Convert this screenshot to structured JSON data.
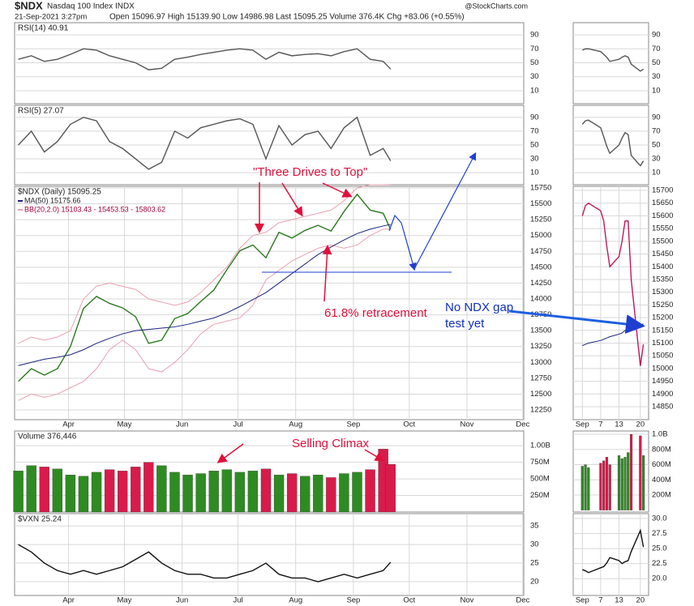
{
  "header": {
    "symbol": "$NDX",
    "name": "Nasdaq 100 Index INDX",
    "date": "21-Sep-2021 3:27pm",
    "quote": "Open 15096.97  High 15139.90  Low 14986.98  Last 15095.25  Volume 376.4K  Chg +83.06 (+0.55%)",
    "credit": "@StockCharts.com"
  },
  "chart_data": [
    {
      "type": "line",
      "legend": "RSI(14) 40.91",
      "xlim": [
        62,
        335.5
      ],
      "ylim": [
        -8.6,
        107.4
      ],
      "yticks": [
        90,
        70,
        50,
        30,
        10
      ],
      "x": [
        64,
        71,
        78,
        85,
        92,
        99,
        106,
        113,
        120,
        127,
        134,
        141,
        148,
        155,
        162,
        169,
        176,
        183,
        190,
        197,
        204,
        211,
        218,
        225,
        232,
        239,
        246,
        253,
        260,
        264
      ],
      "series": [
        {
          "color": "#555555",
          "values": [
            55,
            60,
            52,
            55,
            62,
            70,
            68,
            60,
            55,
            50,
            40,
            42,
            55,
            58,
            62,
            65,
            68,
            70,
            68,
            55,
            65,
            60,
            62,
            63,
            60,
            66,
            70,
            55,
            52,
            40.91
          ]
        }
      ]
    },
    {
      "type": "line",
      "legend": "RSI(5) 27.07",
      "xlim": [
        62,
        335.5
      ],
      "ylim": [
        -7.4,
        107.4
      ],
      "yticks": [
        90,
        70,
        50,
        30,
        10
      ],
      "x": [
        64,
        71,
        78,
        85,
        92,
        99,
        106,
        113,
        120,
        127,
        134,
        141,
        148,
        155,
        162,
        169,
        176,
        183,
        190,
        197,
        204,
        211,
        218,
        225,
        232,
        239,
        246,
        253,
        260,
        264
      ],
      "series": [
        {
          "color": "#555555",
          "values": [
            50,
            70,
            40,
            55,
            80,
            90,
            85,
            55,
            45,
            30,
            15,
            25,
            70,
            60,
            75,
            80,
            85,
            88,
            80,
            30,
            78,
            50,
            65,
            70,
            45,
            75,
            90,
            35,
            45,
            27.07
          ]
        }
      ]
    },
    {
      "type": "line",
      "legend": "$NDX (Daily) 15095.25",
      "xlim": [
        62,
        335.5
      ],
      "ylim": [
        12097,
        15775
      ],
      "yticks": [
        15750,
        15500,
        15250,
        15000,
        14750,
        14500,
        14250,
        14000,
        13750,
        13500,
        13250,
        13000,
        12750,
        12500,
        12250
      ],
      "xticks": [
        {
          "value": 91,
          "label": "Apr"
        },
        {
          "value": 121,
          "label": "May"
        },
        {
          "value": 152,
          "label": "Jun"
        },
        {
          "value": 182,
          "label": "Jul"
        },
        {
          "value": 213,
          "label": "Aug"
        },
        {
          "value": 244,
          "label": "Sep"
        },
        {
          "value": 274,
          "label": "Oct"
        },
        {
          "value": 305,
          "label": "Nov"
        },
        {
          "value": 335,
          "label": "Dec"
        }
      ],
      "x": [
        64,
        71,
        78,
        85,
        92,
        99,
        106,
        113,
        120,
        127,
        134,
        141,
        148,
        155,
        162,
        169,
        176,
        183,
        190,
        197,
        204,
        211,
        218,
        225,
        232,
        239,
        246,
        253,
        260,
        264
      ],
      "series": [
        {
          "color": "#2a7a1e",
          "values": [
            12700,
            12900,
            12800,
            12900,
            13250,
            13850,
            14040,
            13930,
            13860,
            13720,
            13300,
            13350,
            13690,
            13770,
            13960,
            14140,
            14460,
            14760,
            14850,
            14650,
            15050,
            14960,
            15080,
            15160,
            15070,
            15380,
            15650,
            15400,
            15350,
            15095.25
          ]
        },
        {
          "name": "MA(50) 15175.66",
          "color": "#1a237e",
          "values": [
            12950,
            13000,
            13050,
            13080,
            13120,
            13200,
            13300,
            13380,
            13450,
            13500,
            13520,
            13540,
            13560,
            13600,
            13650,
            13700,
            13780,
            13880,
            13990,
            14100,
            14250,
            14400,
            14550,
            14700,
            14820,
            14930,
            15030,
            15100,
            15150,
            15175.66
          ]
        }
      ],
      "bands": {
        "name": "BB(20,2.0) 15103.43 - 15453.53 - 15803.62",
        "color": "#e8a0b0",
        "upper": [
          13300,
          13400,
          13350,
          13400,
          13500,
          14000,
          14200,
          14250,
          14200,
          14150,
          14000,
          13950,
          13900,
          13950,
          14100,
          14300,
          14500,
          14800,
          15000,
          15050,
          15200,
          15250,
          15300,
          15350,
          15400,
          15550,
          15750,
          15800,
          15800,
          15803.62
        ],
        "lower": [
          12400,
          12500,
          12450,
          12500,
          12600,
          12700,
          12900,
          13200,
          13350,
          13200,
          12900,
          12850,
          13000,
          13200,
          13450,
          13600,
          13650,
          13700,
          13900,
          14300,
          14450,
          14600,
          14700,
          14800,
          14850,
          14800,
          14850,
          15000,
          15100,
          15103.43
        ]
      },
      "annotations": [
        "\"Three Drives to Top\"",
        "61.8% retracement",
        "No NDX gap",
        "test yet"
      ]
    },
    {
      "type": "bar",
      "legend": "Volume 376,446",
      "xlim": [
        62,
        335.5
      ],
      "ylim": [
        0,
        1222000000
      ],
      "yticks": [
        {
          "value": 1000000000,
          "label": "1.00B"
        },
        {
          "value": 750000000,
          "label": "750M"
        },
        {
          "value": 500000000,
          "label": "500M"
        },
        {
          "value": 250000000,
          "label": "250M"
        }
      ],
      "x": [
        64,
        71,
        78,
        85,
        92,
        99,
        106,
        113,
        120,
        127,
        134,
        141,
        148,
        155,
        162,
        169,
        176,
        183,
        190,
        197,
        204,
        211,
        218,
        225,
        232,
        239,
        246,
        253,
        260,
        264
      ],
      "values": [
        620000000,
        700000000,
        680000000,
        650000000,
        560000000,
        540000000,
        600000000,
        640000000,
        620000000,
        680000000,
        750000000,
        700000000,
        600000000,
        560000000,
        580000000,
        620000000,
        640000000,
        600000000,
        620000000,
        650000000,
        560000000,
        580000000,
        540000000,
        560000000,
        520000000,
        580000000,
        600000000,
        640000000,
        950000000,
        720000000
      ],
      "annotations": [
        "Selling Climax"
      ]
    },
    {
      "type": "line",
      "legend": "$VXN 25.24",
      "xlim": [
        62,
        335.5
      ],
      "ylim": [
        16.3,
        38.3
      ],
      "yticks": [
        35,
        30,
        25,
        20
      ],
      "xticks": [
        {
          "value": 91,
          "label": "Apr"
        },
        {
          "value": 121,
          "label": "May"
        },
        {
          "value": 152,
          "label": "Jun"
        },
        {
          "value": 182,
          "label": "Jul"
        },
        {
          "value": 213,
          "label": "Aug"
        },
        {
          "value": 244,
          "label": "Sep"
        },
        {
          "value": 274,
          "label": "Oct"
        },
        {
          "value": 305,
          "label": "Nov"
        },
        {
          "value": 335,
          "label": "Dec"
        }
      ],
      "x": [
        64,
        71,
        78,
        85,
        92,
        99,
        106,
        113,
        120,
        127,
        134,
        141,
        148,
        155,
        162,
        169,
        176,
        183,
        190,
        197,
        204,
        211,
        218,
        225,
        232,
        239,
        246,
        253,
        260,
        264
      ],
      "series": [
        {
          "color": "#111111",
          "values": [
            30,
            28,
            25,
            23,
            22,
            23,
            22,
            23,
            24,
            26,
            28,
            25,
            23,
            22,
            22,
            21,
            21,
            22,
            23,
            25,
            22,
            21,
            21,
            20,
            21,
            22,
            21,
            22,
            23,
            25.24
          ]
        }
      ]
    },
    {
      "type": "line",
      "xlim": [
        241,
        265.7
      ],
      "ylim": [
        -8.6,
        107.4
      ],
      "yticks": [
        90,
        70,
        50,
        30,
        10
      ],
      "x": [
        244,
        245,
        246,
        250,
        251,
        252,
        253,
        256,
        257,
        258,
        259,
        260,
        263,
        264
      ],
      "series": [
        {
          "color": "#555555",
          "values": [
            68,
            70,
            70,
            66,
            62,
            58,
            52,
            55,
            58,
            60,
            58,
            48,
            38,
            40.91
          ]
        }
      ]
    },
    {
      "type": "line",
      "xlim": [
        241,
        265.7
      ],
      "ylim": [
        -7.4,
        107.4
      ],
      "yticks": [
        90,
        70,
        50,
        30,
        10
      ],
      "x": [
        244,
        245,
        246,
        250,
        251,
        252,
        253,
        256,
        257,
        258,
        259,
        260,
        263,
        264
      ],
      "series": [
        {
          "color": "#555555",
          "values": [
            80,
            85,
            86,
            75,
            62,
            48,
            38,
            50,
            60,
            68,
            65,
            35,
            20,
            27.07
          ]
        }
      ]
    },
    {
      "type": "line",
      "xlim": [
        241,
        265.7
      ],
      "ylim": [
        14799,
        15716
      ],
      "yticks": [
        15700,
        15650,
        15600,
        15550,
        15500,
        15450,
        15400,
        15350,
        15300,
        15250,
        15200,
        15150,
        15100,
        15050,
        15000,
        14950,
        14900,
        14850
      ],
      "xticks": [
        {
          "value": 244,
          "label": "Sep"
        },
        {
          "value": 250,
          "label": "7"
        },
        {
          "value": 256,
          "label": "13"
        },
        {
          "value": 263,
          "label": "20"
        }
      ],
      "x": [
        244,
        245,
        246,
        250,
        251,
        252,
        253,
        256,
        257,
        258,
        259,
        260,
        263,
        264
      ],
      "series": [
        {
          "color": "#c2185b",
          "values": [
            15600,
            15640,
            15650,
            15620,
            15580,
            15480,
            15400,
            15440,
            15500,
            15580,
            15580,
            15350,
            15010,
            15095.25
          ]
        },
        {
          "color": "#1a237e",
          "values": [
            15090,
            15095,
            15100,
            15110,
            15115,
            15120,
            15125,
            15135,
            15140,
            15150,
            15155,
            15160,
            15170,
            15175.66
          ]
        }
      ]
    },
    {
      "type": "bar",
      "xlim": [
        241,
        265.7
      ],
      "ylim": [
        -24000000,
        1043000000
      ],
      "yticks": [
        {
          "value": 1000000000,
          "label": "1.0B"
        },
        {
          "value": 800000000,
          "label": "800M"
        },
        {
          "value": 600000000,
          "label": "600M"
        },
        {
          "value": 400000000,
          "label": "400M"
        },
        {
          "value": 200000000,
          "label": "200M"
        }
      ],
      "x": [
        244,
        245,
        246,
        250,
        251,
        252,
        253,
        256,
        257,
        258,
        259,
        260,
        263,
        264
      ],
      "values": [
        580000000,
        600000000,
        560000000,
        620000000,
        650000000,
        700000000,
        600000000,
        720000000,
        680000000,
        700000000,
        760000000,
        1000000000,
        980000000,
        720000000
      ]
    },
    {
      "type": "line",
      "xlim": [
        241,
        265.7
      ],
      "ylim": [
        17.2,
        30.8
      ],
      "yticks": [
        {
          "value": 30,
          "label": "30.0"
        },
        {
          "value": 27.5,
          "label": "27.5"
        },
        {
          "value": 25,
          "label": "25.0"
        },
        {
          "value": 22.5,
          "label": "22.5"
        },
        {
          "value": 20,
          "label": "20.0"
        }
      ],
      "xticks": [
        {
          "value": 244,
          "label": "Sep"
        },
        {
          "value": 250,
          "label": "7"
        },
        {
          "value": 256,
          "label": "13"
        },
        {
          "value": 263,
          "label": "20"
        }
      ],
      "x": [
        244,
        245,
        246,
        250,
        251,
        252,
        253,
        256,
        257,
        258,
        259,
        260,
        263,
        264
      ],
      "series": [
        {
          "color": "#111111",
          "values": [
            21.5,
            21.3,
            21.0,
            21.8,
            22.0,
            22.6,
            23.5,
            23.0,
            22.5,
            22.8,
            23.0,
            24.5,
            28.0,
            25.24
          ]
        }
      ]
    }
  ]
}
